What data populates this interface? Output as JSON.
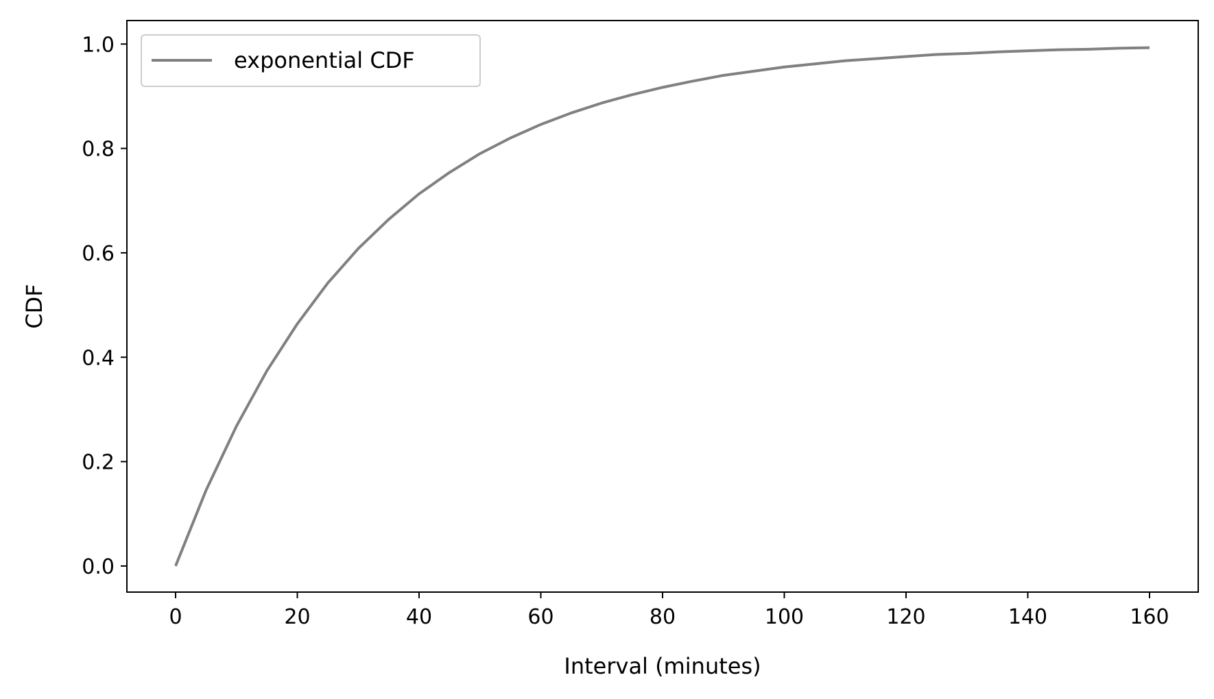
{
  "chart_data": {
    "type": "line",
    "title": "",
    "xlabel": "Interval (minutes)",
    "ylabel": "CDF",
    "xlim": [
      -8,
      168
    ],
    "ylim": [
      -0.05,
      1.045
    ],
    "xticks": [
      0,
      20,
      40,
      60,
      80,
      100,
      120,
      140,
      160
    ],
    "yticks": [
      0.0,
      0.2,
      0.4,
      0.6,
      0.8,
      1.0
    ],
    "xtick_labels": [
      "0",
      "20",
      "40",
      "60",
      "80",
      "100",
      "120",
      "140",
      "160"
    ],
    "ytick_labels": [
      "0.0",
      "0.2",
      "0.4",
      "0.6",
      "0.8",
      "1.0"
    ],
    "grid": false,
    "legend_position": "upper-left",
    "series": [
      {
        "name": "exponential CDF",
        "color": "#808080",
        "x": [
          0,
          5,
          10,
          15,
          20,
          25,
          30,
          35,
          40,
          45,
          50,
          55,
          60,
          65,
          70,
          75,
          80,
          85,
          90,
          95,
          100,
          105,
          110,
          115,
          120,
          125,
          130,
          135,
          140,
          145,
          150,
          155,
          160
        ],
        "y": [
          0.0,
          0.145,
          0.268,
          0.374,
          0.464,
          0.542,
          0.608,
          0.664,
          0.713,
          0.754,
          0.79,
          0.82,
          0.846,
          0.868,
          0.887,
          0.903,
          0.917,
          0.929,
          0.94,
          0.948,
          0.956,
          0.962,
          0.968,
          0.972,
          0.976,
          0.98,
          0.982,
          0.985,
          0.987,
          0.989,
          0.99,
          0.992,
          0.993
        ]
      }
    ]
  }
}
